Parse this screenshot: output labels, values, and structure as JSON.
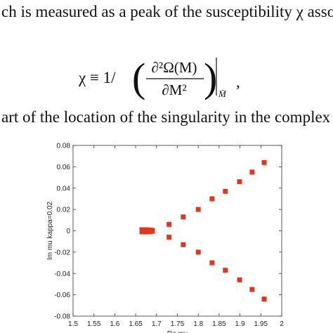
{
  "text": {
    "line1": "ch is measured as a peak of the susceptibility χ associat",
    "line3": "art of the location of the singularity in the complex μ p"
  },
  "equation": {
    "lhs": "χ ≡ 1/",
    "numerator": "∂²Ω(M)",
    "denominator": "∂M²",
    "subscript": "M̄",
    "trail": ","
  },
  "chart_data": {
    "type": "scatter",
    "xlabel": "Re mu",
    "ylabel": "Im mu  kappa=0.02",
    "color": "#e2361a",
    "x": [
      1.665,
      1.67,
      1.675,
      1.68,
      1.685,
      1.69,
      1.665,
      1.67,
      1.675,
      1.68,
      1.685,
      1.69,
      1.73,
      1.764,
      1.8,
      1.833,
      1.865,
      1.899,
      1.929,
      1.958,
      1.73,
      1.764,
      1.8,
      1.833,
      1.865,
      1.899,
      1.929,
      1.958
    ],
    "values": [
      0.001,
      0.001,
      0.001,
      0.0008,
      0.0006,
      0.0004,
      -0.001,
      -0.001,
      -0.001,
      -0.0008,
      -0.0006,
      -0.0004,
      0.006,
      0.013,
      0.02,
      0.03,
      0.037,
      0.046,
      0.055,
      0.064,
      -0.006,
      -0.013,
      -0.02,
      -0.03,
      -0.037,
      -0.046,
      -0.055,
      -0.064
    ],
    "xlim": [
      1.5,
      2
    ],
    "xticks": [
      1.5,
      1.55,
      1.6,
      1.65,
      1.7,
      1.75,
      1.8,
      1.85,
      1.9,
      1.95,
      2
    ],
    "ylim": [
      -0.08,
      0.08
    ],
    "yticks": [
      -0.08,
      -0.06,
      -0.04,
      -0.02,
      0,
      0.02,
      0.04,
      0.06,
      0.08
    ]
  }
}
